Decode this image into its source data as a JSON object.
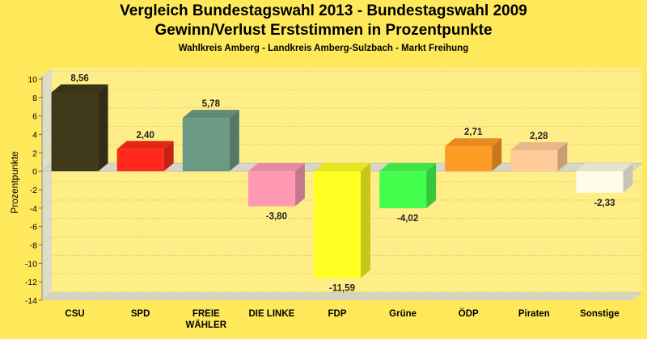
{
  "titles": {
    "line1": "Vergleich Bundestagswahl 2013 - Bundestagswahl 2009",
    "line2": "Gewinn/Verlust Erststimmen in Prozentpunkte",
    "subtitle": "Wahlkreis Amberg - Landkreis Amberg-Sulzbach - Markt Freihung"
  },
  "chart_data": {
    "type": "bar",
    "title": "Vergleich Bundestagswahl 2013 - Bundestagswahl 2009 Gewinn/Verlust Erststimmen in Prozentpunkte",
    "subtitle": "Wahlkreis Amberg - Landkreis Amberg-Sulzbach - Markt Freihung",
    "xlabel": "",
    "ylabel": "Prozentpunkte",
    "ylim": [
      -14,
      10
    ],
    "yticks": [
      10,
      8,
      6,
      4,
      2,
      0,
      -2,
      -4,
      -6,
      -8,
      -10,
      -12,
      -14
    ],
    "grid": true,
    "categories": [
      "CSU",
      "SPD",
      "FREIE WÄHLER",
      "DIE LINKE",
      "FDP",
      "Grüne",
      "ÖDP",
      "Piraten",
      "Sonstige"
    ],
    "category_lines": [
      [
        "CSU"
      ],
      [
        "SPD"
      ],
      [
        "FREIE",
        "WÄHLER"
      ],
      [
        "DIE LINKE"
      ],
      [
        "FDP"
      ],
      [
        "Grüne"
      ],
      [
        "ÖDP"
      ],
      [
        "Piraten"
      ],
      [
        "Sonstige"
      ]
    ],
    "values": [
      8.56,
      2.4,
      5.78,
      -3.8,
      -11.59,
      -4.02,
      2.71,
      2.28,
      -2.33
    ],
    "value_labels": [
      "8,56",
      "2,40",
      "5,78",
      "-3,80",
      "-11,59",
      "-4,02",
      "2,71",
      "2,28",
      "-2,33"
    ],
    "colors": [
      "#403a1a",
      "#ff2a1a",
      "#6b9a84",
      "#ff99b3",
      "#ffff22",
      "#44ff4d",
      "#ff9a22",
      "#ffcc99",
      "#fffde8"
    ]
  }
}
